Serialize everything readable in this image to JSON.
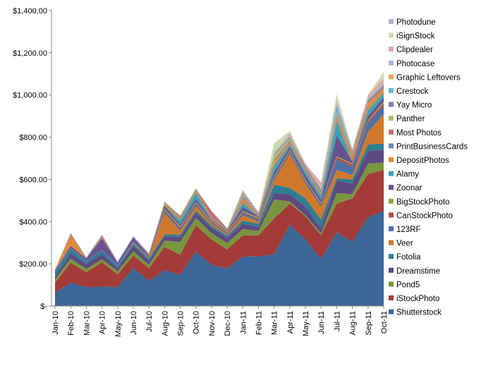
{
  "chart_data": {
    "type": "area",
    "stacked": true,
    "title": "",
    "xlabel": "",
    "ylabel": "",
    "ylim": [
      0,
      1400
    ],
    "y_ticks": [
      "$-",
      "$200.00",
      "$400.00",
      "$600.00",
      "$800.00",
      "$1,000.00",
      "$1,200.00",
      "$1,400.00"
    ],
    "legend_position": "right",
    "grid": false,
    "categories": [
      "Jan-10",
      "Feb-10",
      "Mar-10",
      "Apr-10",
      "May-10",
      "Jun-10",
      "Jul-10",
      "Aug-10",
      "Sep-10",
      "Oct-10",
      "Nov-10",
      "Dec-10",
      "Jan-11",
      "Feb-11",
      "Mar-11",
      "Apr-11",
      "May-11",
      "Jun-11",
      "Jul-11",
      "Aug-11",
      "Sep-11",
      "Oct-11"
    ],
    "series": [
      {
        "name": "Shutterstock",
        "color": "#3c6797",
        "values": [
          65,
          110,
          90,
          92,
          90,
          180,
          120,
          170,
          148,
          258,
          195,
          178,
          235,
          235,
          245,
          385,
          315,
          225,
          350,
          305,
          420,
          450
        ]
      },
      {
        "name": "iStockPhoto",
        "color": "#a33b38",
        "values": [
          45,
          95,
          70,
          115,
          60,
          60,
          60,
          110,
          95,
          125,
          120,
          90,
          100,
          100,
          170,
          100,
          110,
          110,
          135,
          205,
          205,
          195
        ]
      },
      {
        "name": "Pond5",
        "color": "#7a953d",
        "values": [
          15,
          20,
          15,
          15,
          15,
          20,
          15,
          30,
          60,
          35,
          30,
          30,
          30,
          20,
          90,
          10,
          5,
          10,
          50,
          20,
          50,
          35
        ]
      },
      {
        "name": "Dreamstime",
        "color": "#5d4a80",
        "values": [
          15,
          25,
          25,
          25,
          15,
          25,
          20,
          20,
          25,
          25,
          25,
          25,
          25,
          20,
          30,
          35,
          40,
          25,
          60,
          50,
          60,
          60
        ]
      },
      {
        "name": "Fotolia",
        "color": "#2f7d92",
        "values": [
          20,
          20,
          10,
          15,
          10,
          10,
          10,
          10,
          10,
          10,
          10,
          10,
          15,
          15,
          40,
          30,
          40,
          40,
          10,
          20,
          30,
          30
        ]
      },
      {
        "name": "Veer",
        "color": "#d0792c",
        "values": [
          0,
          0,
          0,
          0,
          0,
          5,
          5,
          100,
          20,
          20,
          10,
          5,
          25,
          10,
          20,
          160,
          70,
          60,
          40,
          20,
          60,
          140
        ]
      },
      {
        "name": "123RF",
        "color": "#4a70a8",
        "values": [
          5,
          5,
          5,
          5,
          5,
          5,
          5,
          10,
          10,
          10,
          5,
          5,
          10,
          10,
          10,
          10,
          10,
          10,
          50,
          40,
          40,
          40
        ]
      },
      {
        "name": "CanStockPhoto",
        "color": "#b94744",
        "values": [
          0,
          0,
          0,
          0,
          0,
          0,
          0,
          5,
          5,
          5,
          5,
          5,
          5,
          5,
          5,
          5,
          5,
          5,
          10,
          10,
          10,
          10
        ]
      },
      {
        "name": "BigStockPhoto",
        "color": "#8ea94d",
        "values": [
          0,
          0,
          0,
          0,
          0,
          0,
          0,
          5,
          5,
          5,
          5,
          5,
          5,
          5,
          5,
          5,
          5,
          5,
          5,
          5,
          5,
          10
        ]
      },
      {
        "name": "Zoonar",
        "color": "#6a5290",
        "values": [
          5,
          10,
          10,
          55,
          10,
          20,
          5,
          15,
          10,
          15,
          5,
          5,
          20,
          5,
          20,
          15,
          20,
          15,
          100,
          10,
          20,
          20
        ]
      },
      {
        "name": "Alamy",
        "color": "#3ea3b8",
        "values": [
          0,
          0,
          0,
          0,
          0,
          0,
          0,
          0,
          20,
          30,
          0,
          0,
          20,
          0,
          30,
          10,
          20,
          20,
          70,
          0,
          30,
          20
        ]
      },
      {
        "name": "DepositPhotos",
        "color": "#e18a3a",
        "values": [
          0,
          55,
          0,
          10,
          0,
          0,
          5,
          10,
          10,
          10,
          5,
          5,
          20,
          5,
          20,
          10,
          10,
          10,
          20,
          30,
          30,
          20
        ]
      },
      {
        "name": "PrintBusinessCards",
        "color": "#6d89c0",
        "values": [
          0,
          5,
          5,
          5,
          5,
          5,
          5,
          5,
          5,
          5,
          5,
          5,
          5,
          5,
          5,
          5,
          5,
          5,
          5,
          5,
          5,
          5
        ]
      },
      {
        "name": "Most Photos",
        "color": "#c56f6c",
        "values": [
          0,
          0,
          0,
          0,
          0,
          0,
          0,
          0,
          5,
          0,
          30,
          0,
          5,
          0,
          5,
          5,
          5,
          5,
          5,
          5,
          5,
          5
        ]
      },
      {
        "name": "Panther",
        "color": "#a9c272",
        "values": [
          5,
          0,
          0,
          0,
          0,
          0,
          0,
          5,
          0,
          5,
          0,
          0,
          10,
          0,
          20,
          10,
          0,
          0,
          10,
          0,
          0,
          0
        ]
      },
      {
        "name": "Yay Micro",
        "color": "#8c7aa9",
        "values": [
          0,
          0,
          0,
          0,
          0,
          0,
          0,
          0,
          0,
          0,
          0,
          0,
          5,
          5,
          5,
          5,
          5,
          5,
          5,
          5,
          5,
          5
        ]
      },
      {
        "name": "Crestock",
        "color": "#60b8cf",
        "values": [
          0,
          0,
          0,
          0,
          0,
          0,
          0,
          0,
          0,
          0,
          0,
          0,
          5,
          0,
          0,
          5,
          0,
          5,
          30,
          5,
          5,
          5
        ]
      },
      {
        "name": "Graphic Leftovers",
        "color": "#f3a669",
        "values": [
          0,
          0,
          0,
          0,
          0,
          0,
          0,
          0,
          0,
          0,
          0,
          0,
          0,
          5,
          5,
          5,
          5,
          5,
          5,
          5,
          5,
          5
        ]
      },
      {
        "name": "Photocase",
        "color": "#a6b8dc",
        "values": [
          0,
          0,
          0,
          0,
          0,
          0,
          0,
          0,
          0,
          0,
          0,
          0,
          0,
          0,
          5,
          5,
          5,
          5,
          5,
          5,
          5,
          5
        ]
      },
      {
        "name": "Clipdealer",
        "color": "#e0a9a7",
        "values": [
          0,
          0,
          0,
          0,
          0,
          0,
          0,
          0,
          0,
          0,
          0,
          0,
          10,
          0,
          0,
          5,
          0,
          20,
          10,
          0,
          10,
          20
        ]
      },
      {
        "name": "iSignStock",
        "color": "#c9dcae",
        "values": [
          0,
          0,
          0,
          0,
          0,
          0,
          0,
          0,
          0,
          0,
          0,
          0,
          0,
          0,
          40,
          10,
          0,
          0,
          30,
          0,
          0,
          30
        ]
      },
      {
        "name": "Photodune",
        "color": "#bbb2cf",
        "values": [
          0,
          0,
          0,
          0,
          0,
          0,
          0,
          0,
          0,
          0,
          0,
          0,
          0,
          0,
          0,
          0,
          0,
          0,
          0,
          0,
          0,
          0
        ]
      }
    ]
  }
}
